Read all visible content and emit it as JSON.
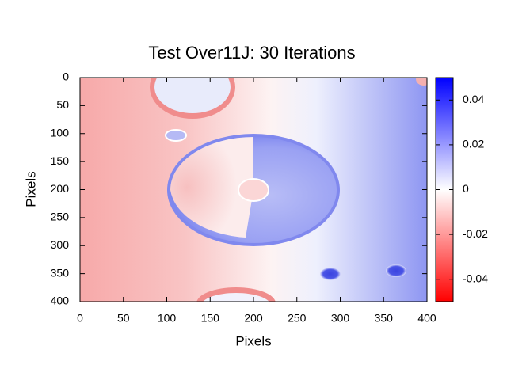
{
  "chart_data": {
    "type": "heatmap",
    "title": "Test Over11J: 30 Iterations",
    "xlabel": "Pixels",
    "ylabel": "Pixels",
    "xlim": [
      0,
      400
    ],
    "ylim": [
      400,
      0
    ],
    "xticks": [
      0,
      50,
      100,
      150,
      200,
      250,
      300,
      350,
      400
    ],
    "yticks": [
      0,
      50,
      100,
      150,
      200,
      250,
      300,
      350,
      400
    ],
    "clim": [
      -0.05,
      0.05
    ],
    "cticks": [
      -0.04,
      -0.02,
      0,
      0.02,
      0.04
    ],
    "colormap": [
      "#ff0000",
      "#ffffff",
      "#0000ff"
    ]
  }
}
